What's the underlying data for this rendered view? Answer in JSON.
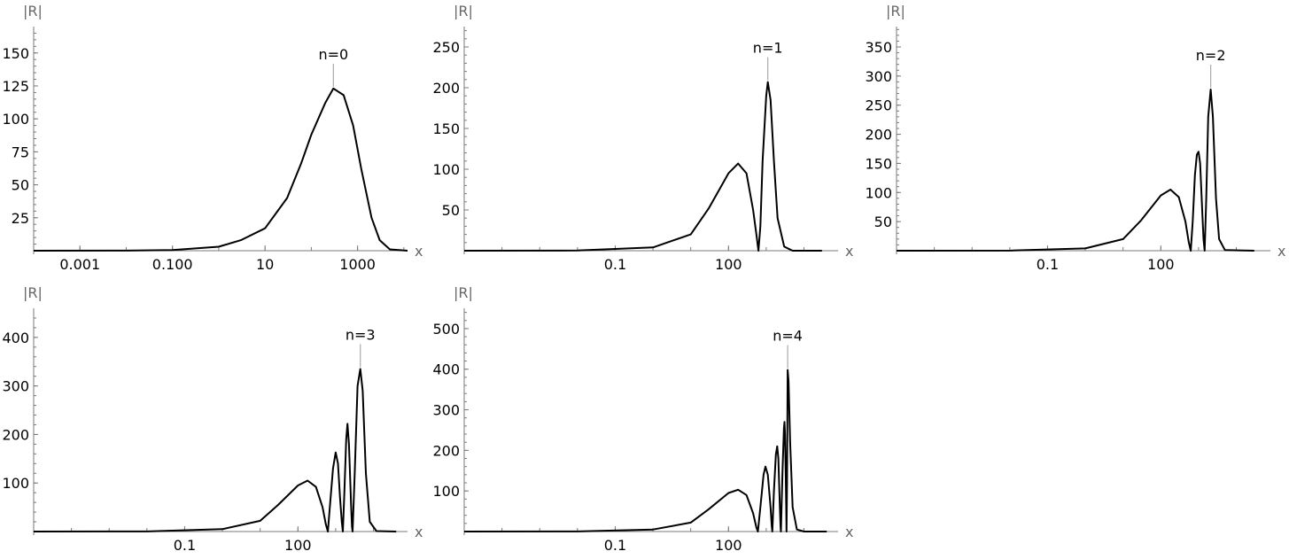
{
  "chart_data": [
    {
      "type": "line",
      "x_scale": "log",
      "xlabel": "x",
      "ylabel": "|R|",
      "x_ticks": [
        "0.001",
        "0.100",
        "10",
        "1000"
      ],
      "y_ticks": [
        "25",
        "50",
        "75",
        "100",
        "125",
        "150"
      ],
      "xlim": [
        0.0001,
        12000
      ],
      "ylim": [
        0,
        170
      ],
      "annotation": {
        "text": "n=0",
        "x": 300,
        "y": 123
      },
      "series": [
        {
          "points": [
            [
              0.0001,
              0
            ],
            [
              0.01,
              0.1
            ],
            [
              0.1,
              0.5
            ],
            [
              1,
              3
            ],
            [
              3,
              8
            ],
            [
              10,
              17
            ],
            [
              30,
              40
            ],
            [
              60,
              66
            ],
            [
              100,
              88
            ],
            [
              200,
              112
            ],
            [
              300,
              123
            ],
            [
              500,
              118
            ],
            [
              800,
              95
            ],
            [
              1200,
              62
            ],
            [
              2000,
              25
            ],
            [
              3000,
              8
            ],
            [
              5000,
              1
            ],
            [
              12000,
              0
            ]
          ]
        }
      ]
    },
    {
      "type": "line",
      "x_scale": "log",
      "xlabel": "x",
      "ylabel": "|R|",
      "x_ticks": [
        "0.1",
        "100"
      ],
      "y_ticks": [
        "50",
        "100",
        "150",
        "200",
        "250"
      ],
      "xlim": [
        1e-05,
        80000
      ],
      "ylim": [
        0,
        275
      ],
      "annotation": {
        "text": "n=1",
        "x": 1100,
        "y": 207
      },
      "series": [
        {
          "points": [
            [
              1e-05,
              0
            ],
            [
              0.01,
              0.2
            ],
            [
              1,
              4
            ],
            [
              10,
              20
            ],
            [
              30,
              52
            ],
            [
              100,
              95
            ],
            [
              180,
              107
            ],
            [
              300,
              95
            ],
            [
              450,
              50
            ],
            [
              550,
              20
            ],
            [
              620,
              0
            ],
            [
              700,
              30
            ],
            [
              800,
              110
            ],
            [
              1000,
              190
            ],
            [
              1100,
              207
            ],
            [
              1300,
              185
            ],
            [
              1600,
              110
            ],
            [
              2000,
              40
            ],
            [
              3000,
              5
            ],
            [
              5000,
              0
            ],
            [
              30000,
              0
            ]
          ]
        }
      ]
    },
    {
      "type": "line",
      "x_scale": "log",
      "xlabel": "x",
      "ylabel": "|R|",
      "x_ticks": [
        "0.1",
        "100"
      ],
      "y_ticks": [
        "50",
        "100",
        "150",
        "200",
        "250",
        "300",
        "350"
      ],
      "xlim": [
        1e-05,
        80000
      ],
      "ylim": [
        0,
        385
      ],
      "annotation": {
        "text": "n=2",
        "x": 2100,
        "y": 277
      },
      "series": [
        {
          "points": [
            [
              1e-05,
              0
            ],
            [
              0.01,
              0.2
            ],
            [
              1,
              4
            ],
            [
              10,
              20
            ],
            [
              30,
              52
            ],
            [
              100,
              95
            ],
            [
              180,
              105
            ],
            [
              300,
              92
            ],
            [
              450,
              50
            ],
            [
              550,
              15
            ],
            [
              620,
              0
            ],
            [
              700,
              50
            ],
            [
              800,
              130
            ],
            [
              900,
              165
            ],
            [
              1000,
              170
            ],
            [
              1100,
              150
            ],
            [
              1250,
              70
            ],
            [
              1350,
              20
            ],
            [
              1450,
              0
            ],
            [
              1600,
              90
            ],
            [
              1800,
              230
            ],
            [
              2100,
              277
            ],
            [
              2400,
              230
            ],
            [
              2900,
              90
            ],
            [
              3500,
              20
            ],
            [
              5000,
              1
            ],
            [
              30000,
              0
            ]
          ]
        }
      ]
    },
    {
      "type": "line",
      "x_scale": "log",
      "xlabel": "x",
      "ylabel": "|R|",
      "x_ticks": [
        "0.1",
        "100"
      ],
      "y_ticks": [
        "100",
        "200",
        "300",
        "400"
      ],
      "xlim": [
        1e-05,
        80000
      ],
      "ylim": [
        0,
        460
      ],
      "annotation": {
        "text": "n=3",
        "x": 4500,
        "y": 335
      },
      "series": [
        {
          "points": [
            [
              1e-05,
              0
            ],
            [
              0.01,
              0.2
            ],
            [
              1,
              5
            ],
            [
              10,
              22
            ],
            [
              30,
              55
            ],
            [
              100,
              95
            ],
            [
              180,
              105
            ],
            [
              300,
              92
            ],
            [
              450,
              50
            ],
            [
              550,
              15
            ],
            [
              620,
              0
            ],
            [
              700,
              50
            ],
            [
              850,
              130
            ],
            [
              1000,
              163
            ],
            [
              1150,
              140
            ],
            [
              1300,
              70
            ],
            [
              1450,
              20
            ],
            [
              1550,
              0
            ],
            [
              1700,
              80
            ],
            [
              1900,
              190
            ],
            [
              2050,
              222
            ],
            [
              2250,
              180
            ],
            [
              2550,
              60
            ],
            [
              2700,
              10
            ],
            [
              2800,
              0
            ],
            [
              3200,
              120
            ],
            [
              3800,
              300
            ],
            [
              4500,
              335
            ],
            [
              5200,
              290
            ],
            [
              6300,
              120
            ],
            [
              8000,
              20
            ],
            [
              12000,
              1
            ],
            [
              40000,
              0
            ]
          ]
        }
      ]
    },
    {
      "type": "line",
      "x_scale": "log",
      "xlabel": "x",
      "ylabel": "|R|",
      "x_ticks": [
        "0.1",
        "100"
      ],
      "y_ticks": [
        "100",
        "200",
        "300",
        "400",
        "500"
      ],
      "xlim": [
        1e-05,
        80000
      ],
      "ylim": [
        0,
        550
      ],
      "annotation": {
        "text": "n=4",
        "x": 3700,
        "y": 398
      },
      "series": [
        {
          "points": [
            [
              1e-05,
              0
            ],
            [
              0.01,
              0.2
            ],
            [
              1,
              5
            ],
            [
              10,
              22
            ],
            [
              30,
              55
            ],
            [
              100,
              95
            ],
            [
              180,
              103
            ],
            [
              300,
              90
            ],
            [
              450,
              45
            ],
            [
              550,
              10
            ],
            [
              600,
              0
            ],
            [
              700,
              60
            ],
            [
              850,
              140
            ],
            [
              950,
              160
            ],
            [
              1100,
              140
            ],
            [
              1300,
              60
            ],
            [
              1400,
              15
            ],
            [
              1450,
              0
            ],
            [
              1600,
              100
            ],
            [
              1800,
              190
            ],
            [
              1950,
              210
            ],
            [
              2100,
              180
            ],
            [
              2300,
              60
            ],
            [
              2400,
              10
            ],
            [
              2450,
              0
            ],
            [
              2700,
              150
            ],
            [
              2950,
              255
            ],
            [
              3050,
              270
            ],
            [
              3150,
              240
            ],
            [
              3300,
              130
            ],
            [
              3400,
              40
            ],
            [
              3450,
              0
            ],
            [
              3550,
              120
            ],
            [
              3650,
              320
            ],
            [
              3700,
              398
            ],
            [
              3900,
              370
            ],
            [
              4300,
              220
            ],
            [
              5000,
              60
            ],
            [
              6500,
              5
            ],
            [
              10000,
              0
            ],
            [
              40000,
              0
            ]
          ]
        }
      ]
    }
  ]
}
